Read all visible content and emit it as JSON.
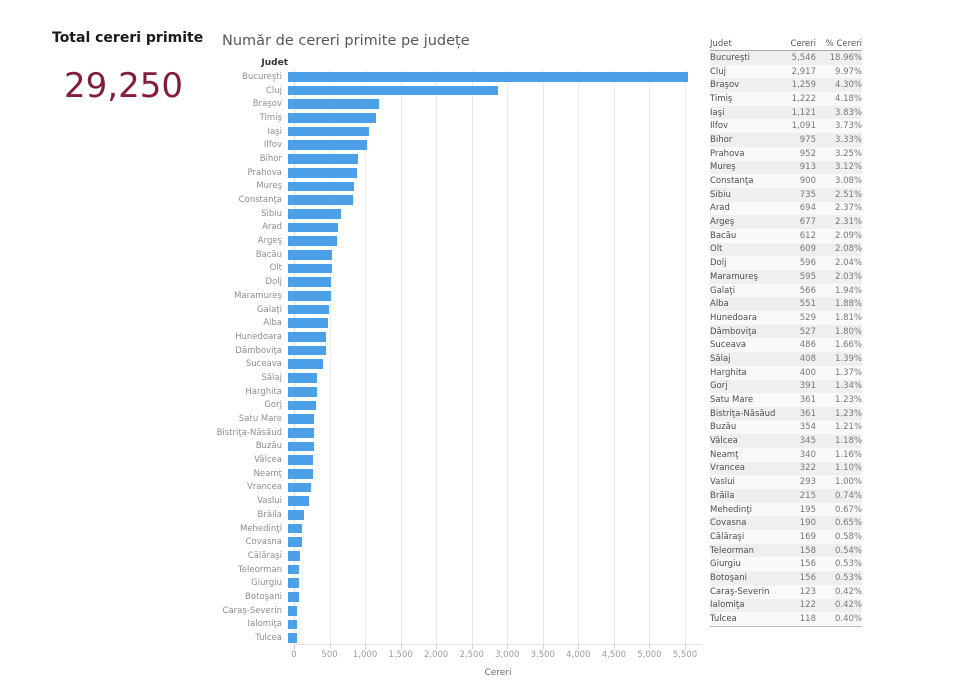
{
  "kpi": {
    "title": "Total cereri primite",
    "value": "29,250",
    "value_color": "#841c3c"
  },
  "chart_data": {
    "type": "bar",
    "orientation": "horizontal",
    "title": "Număr de cereri primite pe județe",
    "col_header": "Judet",
    "xlabel": "Cereri",
    "xlim": [
      0,
      5740
    ],
    "xticks": [
      0,
      500,
      1000,
      1500,
      2000,
      2500,
      3000,
      3500,
      4000,
      4500,
      5000,
      5500
    ],
    "grid": true,
    "bar_color": "#4ba0e8",
    "categories": [
      "Bucureşti",
      "Cluj",
      "Braşov",
      "Timiş",
      "Iaşi",
      "Ilfov",
      "Bihor",
      "Prahova",
      "Mureş",
      "Constanţa",
      "Sibiu",
      "Arad",
      "Argeş",
      "Bacău",
      "Olt",
      "Dolj",
      "Maramureş",
      "Galaţi",
      "Alba",
      "Hunedoara",
      "Dâmboviţa",
      "Suceava",
      "Sălaj",
      "Harghita",
      "Gorj",
      "Satu Mare",
      "Bistriţa-Năsăud",
      "Buzău",
      "Vâlcea",
      "Neamţ",
      "Vrancea",
      "Vaslui",
      "Brăila",
      "Mehedinţi",
      "Covasna",
      "Călăraşi",
      "Teleorman",
      "Giurgiu",
      "Botoşani",
      "Caraş-Severin",
      "Ialomiţa",
      "Tulcea"
    ],
    "values": [
      5546,
      2917,
      1259,
      1222,
      1121,
      1091,
      975,
      952,
      913,
      900,
      735,
      694,
      677,
      612,
      609,
      596,
      595,
      566,
      551,
      529,
      527,
      486,
      408,
      400,
      391,
      361,
      361,
      354,
      345,
      340,
      322,
      293,
      215,
      195,
      190,
      169,
      158,
      156,
      156,
      123,
      122,
      118
    ]
  },
  "table": {
    "columns": [
      "Judet",
      "Cereri",
      "% Cereri"
    ],
    "rows": [
      [
        "Bucureşti",
        "5,546",
        "18.96%"
      ],
      [
        "Cluj",
        "2,917",
        "9.97%"
      ],
      [
        "Braşov",
        "1,259",
        "4.30%"
      ],
      [
        "Timiş",
        "1,222",
        "4.18%"
      ],
      [
        "Iaşi",
        "1,121",
        "3.83%"
      ],
      [
        "Ilfov",
        "1,091",
        "3.73%"
      ],
      [
        "Bihor",
        "975",
        "3.33%"
      ],
      [
        "Prahova",
        "952",
        "3.25%"
      ],
      [
        "Mureş",
        "913",
        "3.12%"
      ],
      [
        "Constanţa",
        "900",
        "3.08%"
      ],
      [
        "Sibiu",
        "735",
        "2.51%"
      ],
      [
        "Arad",
        "694",
        "2.37%"
      ],
      [
        "Argeş",
        "677",
        "2.31%"
      ],
      [
        "Bacău",
        "612",
        "2.09%"
      ],
      [
        "Olt",
        "609",
        "2.08%"
      ],
      [
        "Dolj",
        "596",
        "2.04%"
      ],
      [
        "Maramureş",
        "595",
        "2.03%"
      ],
      [
        "Galaţi",
        "566",
        "1.94%"
      ],
      [
        "Alba",
        "551",
        "1.88%"
      ],
      [
        "Hunedoara",
        "529",
        "1.81%"
      ],
      [
        "Dâmboviţa",
        "527",
        "1.80%"
      ],
      [
        "Suceava",
        "486",
        "1.66%"
      ],
      [
        "Sălaj",
        "408",
        "1.39%"
      ],
      [
        "Harghita",
        "400",
        "1.37%"
      ],
      [
        "Gorj",
        "391",
        "1.34%"
      ],
      [
        "Satu Mare",
        "361",
        "1.23%"
      ],
      [
        "Bistriţa-Năsăud",
        "361",
        "1.23%"
      ],
      [
        "Buzău",
        "354",
        "1.21%"
      ],
      [
        "Vâlcea",
        "345",
        "1.18%"
      ],
      [
        "Neamţ",
        "340",
        "1.16%"
      ],
      [
        "Vrancea",
        "322",
        "1.10%"
      ],
      [
        "Vaslui",
        "293",
        "1.00%"
      ],
      [
        "Brăila",
        "215",
        "0.74%"
      ],
      [
        "Mehedinţi",
        "195",
        "0.67%"
      ],
      [
        "Covasna",
        "190",
        "0.65%"
      ],
      [
        "Călăraşi",
        "169",
        "0.58%"
      ],
      [
        "Teleorman",
        "158",
        "0.54%"
      ],
      [
        "Giurgiu",
        "156",
        "0.53%"
      ],
      [
        "Botoşani",
        "156",
        "0.53%"
      ],
      [
        "Caraş-Severin",
        "123",
        "0.42%"
      ],
      [
        "Ialomiţa",
        "122",
        "0.42%"
      ],
      [
        "Tulcea",
        "118",
        "0.40%"
      ]
    ]
  }
}
